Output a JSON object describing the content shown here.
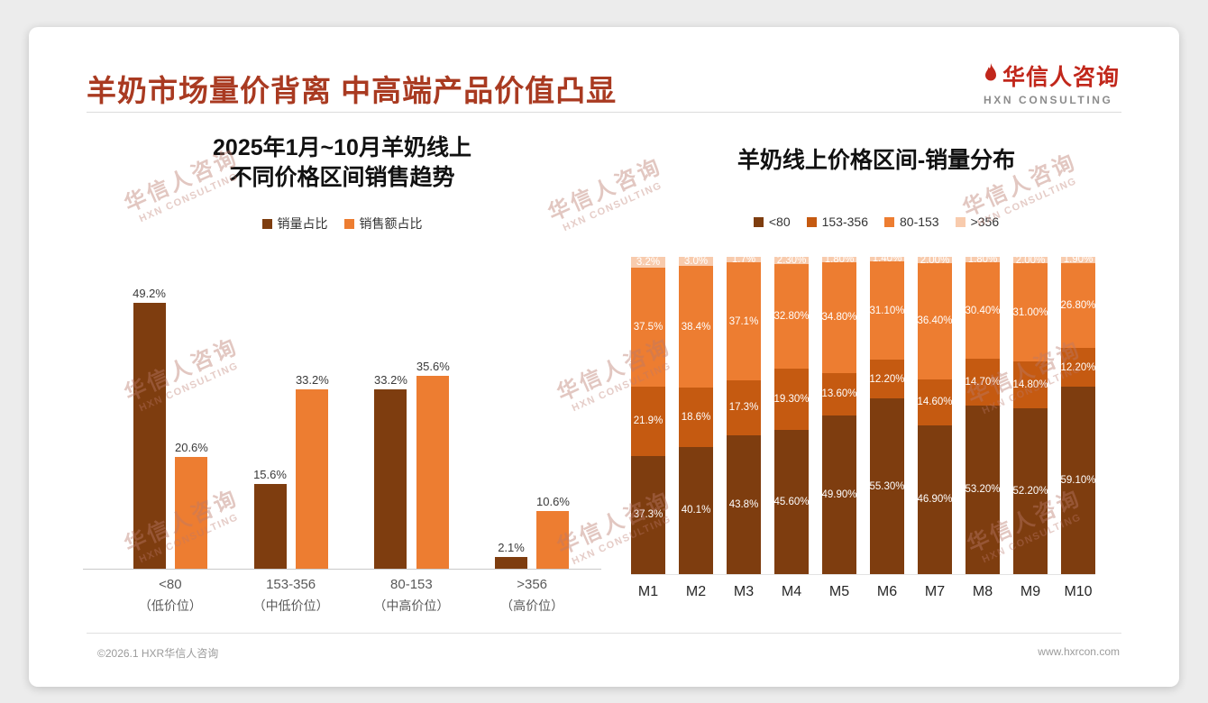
{
  "page": {
    "title": "羊奶市场量价背离 中高端产品价值凸显",
    "logo_cn": "华信人咨询",
    "logo_en": "HXN CONSULTING",
    "footer_left": "©2026.1 HXR华信人咨询",
    "footer_right": "www.hxrcon.com",
    "watermark": {
      "cn": "华信人咨询",
      "en": "HXN CONSULTING"
    }
  },
  "colors": {
    "title_red": "#A93A21",
    "logo_red": "#C1271B",
    "series_dark_brown": "#7E3D0F",
    "series_mid_orange": "#C55A11",
    "series_orange": "#ED7D31",
    "series_light_peach": "#F8CBAD"
  },
  "chart_data": [
    {
      "type": "bar",
      "title_lines": [
        "2025年1月~10月羊奶线上",
        "不同价格区间销售趋势"
      ],
      "title": "2025年1月~10月羊奶线上不同价格区间销售趋势",
      "categories": [
        "<80",
        "153-356",
        "80-153",
        ">356"
      ],
      "category_subs": [
        "（低价位）",
        "（中低价位）",
        "（中高价位）",
        "（高价位）"
      ],
      "series": [
        {
          "name": "销量占比",
          "color": "#7E3D0F",
          "values": [
            49.2,
            15.6,
            33.2,
            2.1
          ],
          "labels": [
            "49.2%",
            "15.6%",
            "33.2%",
            "2.1%"
          ]
        },
        {
          "name": "销售额占比",
          "color": "#ED7D31",
          "values": [
            20.6,
            33.2,
            35.6,
            10.6
          ],
          "labels": [
            "20.6%",
            "33.2%",
            "35.6%",
            "10.6%"
          ]
        }
      ],
      "value_suffix": "%",
      "ylim": [
        0,
        55
      ],
      "grid": false,
      "legend_position": "top"
    },
    {
      "type": "stacked-bar",
      "title": "羊奶线上价格区间-销量分布",
      "categories": [
        "M1",
        "M2",
        "M3",
        "M4",
        "M5",
        "M6",
        "M7",
        "M8",
        "M9",
        "M10"
      ],
      "series": [
        {
          "name": "<80",
          "color": "#7E3D0F",
          "values": [
            37.3,
            40.1,
            43.8,
            45.6,
            49.9,
            55.3,
            46.9,
            53.2,
            52.2,
            59.1
          ],
          "labels": [
            "37.3%",
            "40.1%",
            "43.8%",
            "45.60%",
            "49.90%",
            "55.30%",
            "46.90%",
            "53.20%",
            "52.20%",
            "59.10%"
          ]
        },
        {
          "name": "153-356",
          "color": "#C55A11",
          "values": [
            21.9,
            18.6,
            17.3,
            19.3,
            13.6,
            12.2,
            14.6,
            14.7,
            14.8,
            12.2
          ],
          "labels": [
            "21.9%",
            "18.6%",
            "17.3%",
            "19.30%",
            "13.60%",
            "12.20%",
            "14.60%",
            "14.70%",
            "14.80%",
            "12.20%"
          ]
        },
        {
          "name": "80-153",
          "color": "#ED7D31",
          "values": [
            37.5,
            38.4,
            37.1,
            32.8,
            34.8,
            31.1,
            36.4,
            30.4,
            31.0,
            26.8
          ],
          "labels": [
            "37.5%",
            "38.4%",
            "37.1%",
            "32.80%",
            "34.80%",
            "31.10%",
            "36.40%",
            "30.40%",
            "31.00%",
            "26.80%"
          ]
        },
        {
          "name": ">356",
          "color": "#F8CBAD",
          "values": [
            3.2,
            3.0,
            1.7,
            2.3,
            1.8,
            1.4,
            2.0,
            1.8,
            2.0,
            1.9
          ],
          "labels": [
            "3.2%",
            "3.0%",
            "1.7%",
            "2.30%",
            "1.80%",
            "1.40%",
            "2.00%",
            "1.80%",
            "2.00%",
            "1.90%"
          ]
        }
      ],
      "stack_order": "bottom-to-top",
      "ylim": [
        0,
        100
      ],
      "grid": false,
      "legend_position": "top"
    }
  ]
}
